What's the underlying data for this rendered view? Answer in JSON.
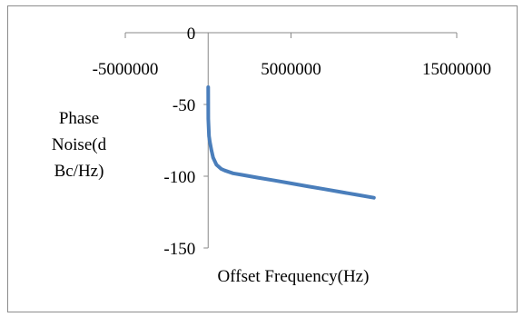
{
  "chart_data": {
    "type": "line",
    "title": "",
    "xlabel": "Offset Frequency(Hz)",
    "ylabel_lines": [
      "Phase",
      "Noise(d",
      "Bc/Hz)"
    ],
    "xlim": [
      -5000000,
      15000000
    ],
    "ylim": [
      -150,
      0
    ],
    "x_ticks": [
      -5000000,
      5000000,
      15000000
    ],
    "x_tick_labels": [
      "-5000000",
      "5000000",
      "15000000"
    ],
    "y_ticks": [
      0,
      -50,
      -100,
      -150
    ],
    "y_tick_labels": [
      "0",
      "-50",
      "-100",
      "-150"
    ],
    "grid": false,
    "legend": "none",
    "series": [
      {
        "color": "#4a7ebb",
        "x": [
          1000,
          10000,
          50000,
          100000,
          200000,
          300000,
          500000,
          800000,
          1000000,
          1500000,
          2000000,
          3000000,
          4000000,
          5000000,
          6000000,
          7000000,
          8000000,
          9000000,
          10000000
        ],
        "y": [
          -38,
          -60,
          -72,
          -76,
          -82,
          -87,
          -92,
          -95,
          -96,
          -98,
          -99,
          -101,
          -103,
          -105,
          -107,
          -109,
          -111,
          -113,
          -115
        ]
      }
    ]
  }
}
